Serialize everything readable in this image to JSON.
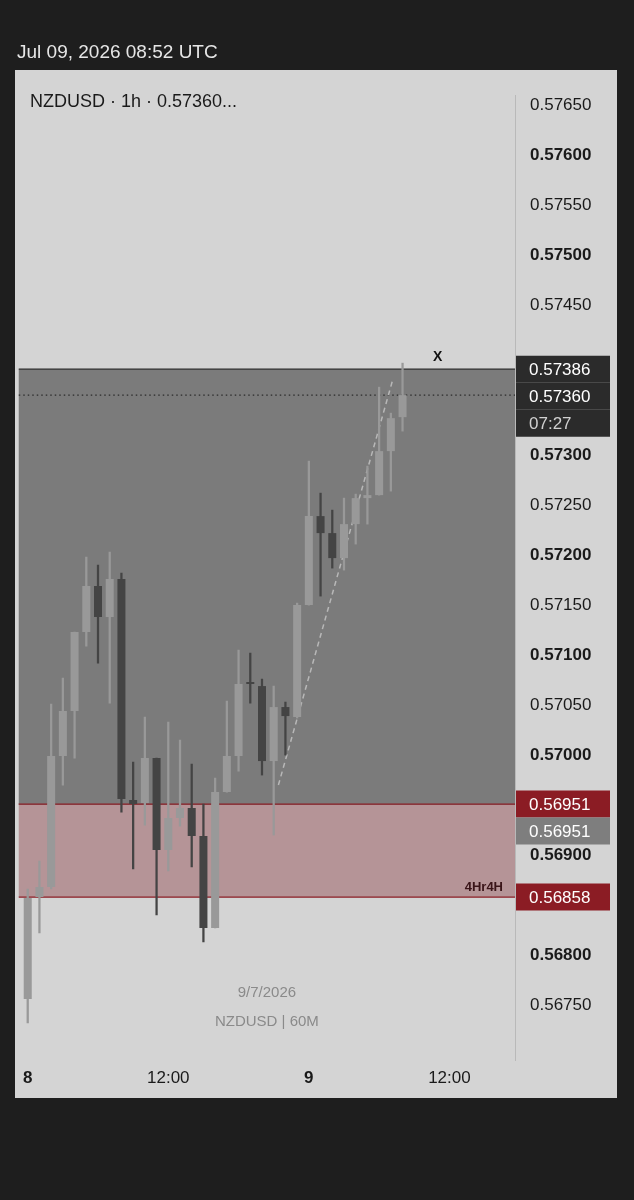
{
  "chart_data": {
    "type": "candlestick",
    "title": "NZDUSD · 1h · 0.57360...",
    "subtitle": "Jul 09, 2026 08:52 UTC",
    "x": [
      "2026-07-08T00:00",
      "2026-07-08T01:00",
      "2026-07-08T02:00",
      "2026-07-08T03:00",
      "2026-07-08T04:00",
      "2026-07-08T05:00",
      "2026-07-08T06:00",
      "2026-07-08T07:00",
      "2026-07-08T08:00",
      "2026-07-08T09:00",
      "2026-07-08T10:00",
      "2026-07-08T11:00",
      "2026-07-08T12:00",
      "2026-07-08T13:00",
      "2026-07-08T14:00",
      "2026-07-08T15:00",
      "2026-07-08T16:00",
      "2026-07-08T17:00",
      "2026-07-08T18:00",
      "2026-07-08T19:00",
      "2026-07-08T20:00",
      "2026-07-08T21:00",
      "2026-07-08T22:00",
      "2026-07-08T23:00",
      "2026-07-09T00:00",
      "2026-07-09T01:00",
      "2026-07-09T02:00",
      "2026-07-09T03:00",
      "2026-07-09T04:00",
      "2026-07-09T05:00",
      "2026-07-09T06:00",
      "2026-07-09T07:00",
      "2026-07-09T08:00"
    ],
    "ohlc": [
      [
        0.56756,
        0.56866,
        0.56732,
        0.56857
      ],
      [
        0.56858,
        0.56894,
        0.56822,
        0.56868
      ],
      [
        0.56868,
        0.57051,
        0.56866,
        0.56999
      ],
      [
        0.56999,
        0.57077,
        0.5697,
        0.57044
      ],
      [
        0.57044,
        0.57123,
        0.56997,
        0.57123
      ],
      [
        0.57123,
        0.57198,
        0.57109,
        0.57169
      ],
      [
        0.57169,
        0.5719,
        0.57092,
        0.57138
      ],
      [
        0.57138,
        0.57203,
        0.57052,
        0.57176
      ],
      [
        0.57176,
        0.57182,
        0.56943,
        0.56956
      ],
      [
        0.56955,
        0.56993,
        0.56886,
        0.56951
      ],
      [
        0.56952,
        0.57038,
        0.5693,
        0.56997
      ],
      [
        0.56997,
        0.56997,
        0.5684,
        0.56905
      ],
      [
        0.56905,
        0.57033,
        0.56884,
        0.56937
      ],
      [
        0.56937,
        0.57015,
        0.56929,
        0.56947
      ],
      [
        0.56947,
        0.56991,
        0.56888,
        0.56919
      ],
      [
        0.56919,
        0.56951,
        0.56813,
        0.56827
      ],
      [
        0.56827,
        0.56977,
        0.56827,
        0.56963
      ],
      [
        0.56963,
        0.57054,
        0.56963,
        0.56999
      ],
      [
        0.56999,
        0.57105,
        0.56984,
        0.57071
      ],
      [
        0.57071,
        0.57102,
        0.57052,
        0.57071
      ],
      [
        0.57069,
        0.57076,
        0.5698,
        0.56994
      ],
      [
        0.56994,
        0.57069,
        0.5692,
        0.57048
      ],
      [
        0.57048,
        0.57053,
        0.57,
        0.57039
      ],
      [
        0.57038,
        0.57152,
        0.57037,
        0.5715
      ],
      [
        0.5715,
        0.57294,
        0.5715,
        0.57239
      ],
      [
        0.57239,
        0.57262,
        0.57159,
        0.57222
      ],
      [
        0.57222,
        0.57245,
        0.57187,
        0.57197
      ],
      [
        0.57197,
        0.57257,
        0.57185,
        0.57231
      ],
      [
        0.57231,
        0.57261,
        0.57211,
        0.57257
      ],
      [
        0.57257,
        0.57289,
        0.57231,
        0.5726
      ],
      [
        0.5726,
        0.57368,
        0.5726,
        0.57304
      ],
      [
        0.57304,
        0.57342,
        0.57264,
        0.57337
      ],
      [
        0.57338,
        0.57392,
        0.57324,
        0.5736
      ]
    ],
    "colors": [
      "#999999",
      "#999999",
      "#999999",
      "#999999",
      "#999999",
      "#999999",
      "#444444",
      "#999999",
      "#444444",
      "#444444",
      "#999999",
      "#444444",
      "#999999",
      "#999999",
      "#444444",
      "#444444",
      "#999999",
      "#999999",
      "#999999",
      "#444444",
      "#444444",
      "#999999",
      "#444444",
      "#999999",
      "#999999",
      "#444444",
      "#444444",
      "#999999",
      "#999999",
      "#999999",
      "#999999",
      "#999999",
      "#999999"
    ],
    "series": [
      {
        "type": "line",
        "x": [
          "2026-07-08T21:24",
          "2026-07-09T07:12"
        ],
        "values": [
          0.5697,
          0.57377
        ],
        "color": "#b8b8b8",
        "line_style": "dashed"
      }
    ],
    "xlim": [
      "2026-07-07T23:14",
      "2026-07-09T17:36"
    ],
    "xticks": [
      {
        "value": "2026-07-08T00:00",
        "label": "8"
      },
      {
        "value": "2026-07-08T12:00",
        "label": "12:00"
      },
      {
        "value": "2026-07-09T00:00",
        "label": "9"
      },
      {
        "value": "2026-07-09T12:00",
        "label": "12:00"
      }
    ],
    "ylim": [
      0.56695,
      0.5766
    ],
    "yticks": [
      {
        "value": 0.5675,
        "label": "0.56750"
      },
      {
        "value": 0.568,
        "label": "0.56800"
      },
      {
        "value": 0.569,
        "label": "0.56900"
      },
      {
        "value": 0.57,
        "label": "0.57000"
      },
      {
        "value": 0.5705,
        "label": "0.57050"
      },
      {
        "value": 0.571,
        "label": "0.57100"
      },
      {
        "value": 0.5715,
        "label": "0.57150"
      },
      {
        "value": 0.572,
        "label": "0.57200"
      },
      {
        "value": 0.5725,
        "label": "0.57250"
      },
      {
        "value": 0.573,
        "label": "0.57300"
      },
      {
        "value": 0.5745,
        "label": "0.57450"
      },
      {
        "value": 0.575,
        "label": "0.57500"
      },
      {
        "value": 0.5755,
        "label": "0.57550"
      },
      {
        "value": 0.576,
        "label": "0.57600"
      },
      {
        "value": 0.5765,
        "label": "0.57650"
      }
    ],
    "bands": [
      {
        "axis": "y",
        "from": 0.56951,
        "to": 0.57386,
        "color": "#7b7b7b"
      },
      {
        "axis": "y",
        "from": 0.56858,
        "to": 0.56951,
        "color": "#b59497",
        "label": "4Hr4H"
      }
    ],
    "ref_lines": [
      {
        "axis": "y",
        "value": 0.57386,
        "label": "0.57386",
        "color": "#2b2b2b"
      },
      {
        "axis": "y",
        "value": 0.5736,
        "label": "0.57360",
        "color": "#2b2b2b",
        "line_style": "dotted"
      },
      {
        "axis": "y",
        "value": 0.56951,
        "label": "0.56951",
        "color": "#8b1c24"
      },
      {
        "axis": "y",
        "value": 0.56951,
        "label": "0.56951",
        "color": "#7e7e7e"
      },
      {
        "axis": "y",
        "value": 0.56858,
        "label": "0.56858",
        "color": "#8b1c24"
      }
    ],
    "annotations": [
      {
        "text": "X",
        "x": "2026-07-09T11:00",
        "y": 0.57386
      },
      "07:27",
      "9/7/2026",
      "NZDUSD | 60M"
    ]
  }
}
